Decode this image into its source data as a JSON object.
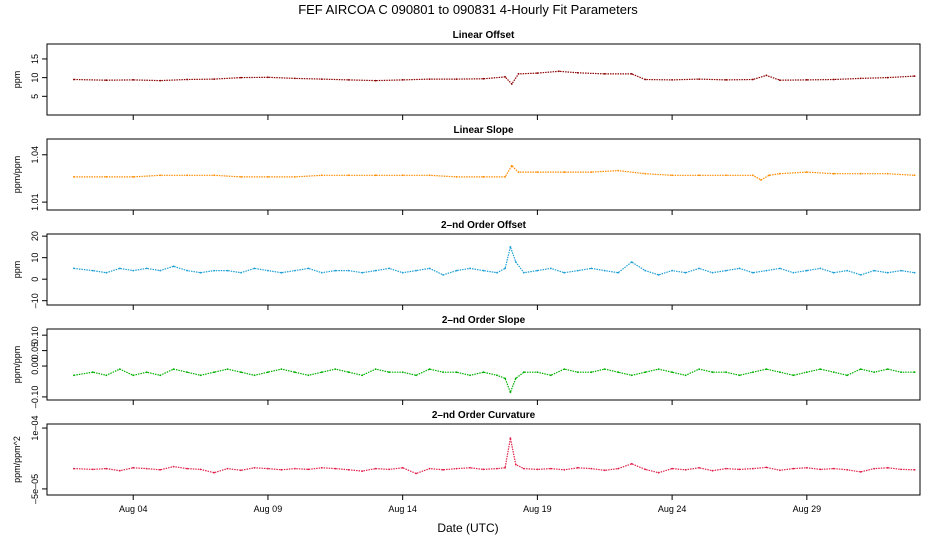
{
  "figure": {
    "title": "FEF   AIRCOA C   090801 to 090831   4-Hourly Fit Parameters",
    "xlabel": "Date (UTC)"
  },
  "chart_data": [
    {
      "type": "line",
      "title": "Linear Offset",
      "ylabel": "ppm",
      "color": "#8b0000",
      "ylim": [
        0,
        19
      ],
      "yticks": [
        "5",
        "10",
        "15"
      ],
      "ytick_values": [
        5,
        10,
        15
      ],
      "xlim": [
        -0.2,
        32.2
      ],
      "xticks": [
        "Aug 04",
        "Aug 09",
        "Aug 14",
        "Aug 19",
        "Aug 24",
        "Aug 29"
      ],
      "xtick_values": [
        3,
        8,
        13,
        18,
        23,
        28
      ],
      "series": [
        {
          "x": [
            0.8,
            2,
            3,
            4,
            5,
            6,
            7,
            8,
            9,
            10,
            11,
            12,
            13,
            14,
            15,
            16,
            16.8,
            17.05,
            17.3,
            18,
            18.8,
            19.5,
            20.5,
            21.5,
            22,
            23,
            24,
            25,
            26,
            26.5,
            27,
            28,
            29,
            30,
            31,
            32
          ],
          "y": [
            9.5,
            9.3,
            9.4,
            9.2,
            9.5,
            9.6,
            10.0,
            10.1,
            9.8,
            9.6,
            9.4,
            9.2,
            9.4,
            9.6,
            9.6,
            9.7,
            10.2,
            8.3,
            11.0,
            11.2,
            11.7,
            11.3,
            11.0,
            11.0,
            9.5,
            9.4,
            9.6,
            9.4,
            9.5,
            10.6,
            9.3,
            9.4,
            9.5,
            9.8,
            10.0,
            10.4
          ]
        }
      ]
    },
    {
      "type": "line",
      "title": "Linear Slope",
      "ylabel": "ppm/ppm",
      "color": "#ff8c00",
      "ylim": [
        1.005,
        1.05
      ],
      "yticks": [
        "1.01",
        "1.04"
      ],
      "ytick_values": [
        1.01,
        1.04
      ],
      "xlim": [
        -0.2,
        32.2
      ],
      "xticks": [
        "Aug 04",
        "Aug 09",
        "Aug 14",
        "Aug 19",
        "Aug 24",
        "Aug 29"
      ],
      "xtick_values": [
        3,
        8,
        13,
        18,
        23,
        28
      ],
      "series": [
        {
          "x": [
            0.8,
            2,
            3,
            4,
            5,
            6,
            7,
            8,
            9,
            10,
            11,
            12,
            13,
            14,
            15,
            16,
            16.8,
            17.05,
            17.3,
            18,
            19,
            20,
            21,
            22,
            23,
            24,
            25,
            26,
            26.3,
            26.6,
            27,
            28,
            29,
            30,
            31,
            32
          ],
          "y": [
            1.026,
            1.026,
            1.026,
            1.027,
            1.027,
            1.027,
            1.026,
            1.026,
            1.026,
            1.027,
            1.027,
            1.027,
            1.027,
            1.027,
            1.026,
            1.026,
            1.026,
            1.033,
            1.029,
            1.029,
            1.029,
            1.029,
            1.03,
            1.028,
            1.027,
            1.027,
            1.027,
            1.027,
            1.024,
            1.027,
            1.028,
            1.029,
            1.028,
            1.028,
            1.028,
            1.027
          ]
        }
      ]
    },
    {
      "type": "line",
      "title": "2–nd Order Offset",
      "ylabel": "ppm",
      "color": "#1e9fd6",
      "ylim": [
        -12,
        21
      ],
      "yticks": [
        "–10",
        "0",
        "10",
        "20"
      ],
      "ytick_values": [
        -10,
        0,
        10,
        20
      ],
      "xlim": [
        -0.2,
        32.2
      ],
      "xticks": [
        "Aug 04",
        "Aug 09",
        "Aug 14",
        "Aug 19",
        "Aug 24",
        "Aug 29"
      ],
      "xtick_values": [
        3,
        8,
        13,
        18,
        23,
        28
      ],
      "series": [
        {
          "x": [
            0.8,
            1.5,
            2,
            2.5,
            3,
            3.5,
            4,
            4.5,
            5,
            5.5,
            6,
            6.5,
            7,
            7.5,
            8,
            8.5,
            9,
            9.5,
            10,
            10.5,
            11,
            11.5,
            12,
            12.5,
            13,
            13.5,
            14,
            14.5,
            15,
            15.5,
            16,
            16.5,
            16.8,
            17.0,
            17.2,
            17.5,
            18,
            18.5,
            19,
            19.5,
            20,
            20.5,
            21,
            21.5,
            22,
            22.5,
            23,
            23.5,
            24,
            24.5,
            25,
            25.5,
            26,
            26.5,
            27,
            27.5,
            28,
            28.5,
            29,
            29.5,
            30,
            30.5,
            31,
            31.5,
            32
          ],
          "y": [
            5,
            4,
            3,
            5,
            4,
            5,
            4,
            6,
            4,
            3,
            4,
            4,
            3,
            5,
            4,
            3,
            4,
            5,
            3,
            4,
            4,
            3,
            4,
            5,
            3,
            4,
            5,
            2,
            4,
            5,
            4,
            3,
            5,
            15,
            8,
            3,
            4,
            5,
            3,
            4,
            5,
            4,
            3,
            8,
            4,
            2,
            4,
            3,
            5,
            3,
            4,
            5,
            3,
            4,
            5,
            3,
            4,
            5,
            3,
            4,
            2,
            4,
            3,
            4,
            3
          ]
        }
      ]
    },
    {
      "type": "line",
      "title": "2–nd Order Slope",
      "ylabel": "ppm/ppm",
      "color": "#00b000",
      "ylim": [
        -0.11,
        0.12
      ],
      "yticks": [
        "–0.10",
        "0.00",
        "0.05",
        "0.10"
      ],
      "ytick_values": [
        -0.1,
        0.0,
        0.05,
        0.1
      ],
      "xlim": [
        -0.2,
        32.2
      ],
      "xticks": [
        "Aug 04",
        "Aug 09",
        "Aug 14",
        "Aug 19",
        "Aug 24",
        "Aug 29"
      ],
      "xtick_values": [
        3,
        8,
        13,
        18,
        23,
        28
      ],
      "series": [
        {
          "x": [
            0.8,
            1.5,
            2,
            2.5,
            3,
            3.5,
            4,
            4.5,
            5,
            5.5,
            6,
            6.5,
            7,
            7.5,
            8,
            8.5,
            9,
            9.5,
            10,
            10.5,
            11,
            11.5,
            12,
            12.5,
            13,
            13.5,
            14,
            14.5,
            15,
            15.5,
            16,
            16.5,
            16.8,
            17.0,
            17.2,
            17.5,
            18,
            18.5,
            19,
            19.5,
            20,
            20.5,
            21,
            21.5,
            22,
            22.5,
            23,
            23.5,
            24,
            24.5,
            25,
            25.5,
            26,
            26.5,
            27,
            27.5,
            28,
            28.5,
            29,
            29.5,
            30,
            30.5,
            31,
            31.5,
            32
          ],
          "y": [
            -0.03,
            -0.02,
            -0.03,
            -0.01,
            -0.03,
            -0.02,
            -0.03,
            -0.01,
            -0.02,
            -0.03,
            -0.02,
            -0.01,
            -0.02,
            -0.03,
            -0.02,
            -0.01,
            -0.02,
            -0.03,
            -0.02,
            -0.01,
            -0.02,
            -0.03,
            -0.01,
            -0.02,
            -0.02,
            -0.03,
            -0.01,
            -0.02,
            -0.02,
            -0.03,
            -0.02,
            -0.03,
            -0.04,
            -0.085,
            -0.04,
            -0.02,
            -0.02,
            -0.03,
            -0.01,
            -0.02,
            -0.02,
            -0.01,
            -0.02,
            -0.03,
            -0.02,
            -0.01,
            -0.02,
            -0.03,
            -0.01,
            -0.02,
            -0.02,
            -0.03,
            -0.02,
            -0.01,
            -0.02,
            -0.03,
            -0.02,
            -0.01,
            -0.02,
            -0.03,
            -0.01,
            -0.02,
            -0.01,
            -0.02,
            -0.02
          ]
        }
      ]
    },
    {
      "type": "line",
      "title": "2–nd Order Curvature",
      "ylabel": "ppm/ppm^2",
      "color": "#e0204a",
      "ylim": [
        -6.5e-05,
        0.00011
      ],
      "yticks": [
        "–5e–05",
        "1e–04"
      ],
      "ytick_values": [
        -5e-05,
        0.0001
      ],
      "xlim": [
        -0.2,
        32.2
      ],
      "xticks": [
        "Aug 04",
        "Aug 09",
        "Aug 14",
        "Aug 19",
        "Aug 24",
        "Aug 29"
      ],
      "xtick_values": [
        3,
        8,
        13,
        18,
        23,
        28
      ],
      "series": [
        {
          "x": [
            0.8,
            1.5,
            2,
            2.5,
            3,
            3.5,
            4,
            4.5,
            5,
            5.5,
            6,
            6.5,
            7,
            7.5,
            8,
            8.5,
            9,
            9.5,
            10,
            10.5,
            11,
            11.5,
            12,
            12.5,
            13,
            13.5,
            14,
            14.5,
            15,
            15.5,
            16,
            16.5,
            16.8,
            17.0,
            17.2,
            17.5,
            18,
            18.5,
            19,
            19.5,
            20,
            20.5,
            21,
            21.5,
            22,
            22.5,
            23,
            23.5,
            24,
            24.5,
            25,
            25.5,
            26,
            26.5,
            27,
            27.5,
            28,
            28.5,
            29,
            29.5,
            30,
            30.5,
            31,
            31.5,
            32
          ],
          "y": [
            0.0,
            -2e-06,
            0.0,
            -5e-06,
            2e-06,
            0.0,
            -3e-06,
            5e-06,
            0.0,
            -2e-06,
            -1e-05,
            0.0,
            -4e-06,
            2e-06,
            0.0,
            -3e-06,
            0.0,
            -2e-06,
            2e-06,
            0.0,
            -3e-06,
            -6e-06,
            0.0,
            -2e-06,
            2e-06,
            -1.2e-05,
            0.0,
            -3e-06,
            0.0,
            2e-06,
            -2e-06,
            0.0,
            2e-06,
            7.5e-05,
            1e-05,
            0.0,
            -2e-06,
            0.0,
            -3e-06,
            2e-06,
            0.0,
            -4e-06,
            0.0,
            1.2e-05,
            -2e-06,
            -1e-05,
            0.0,
            -3e-06,
            2e-06,
            -5e-06,
            0.0,
            -2e-06,
            0.0,
            3e-06,
            -4e-06,
            0.0,
            2e-06,
            -2e-06,
            0.0,
            -3e-06,
            -8e-06,
            0.0,
            2e-06,
            -2e-06,
            -3e-06
          ]
        }
      ]
    }
  ]
}
